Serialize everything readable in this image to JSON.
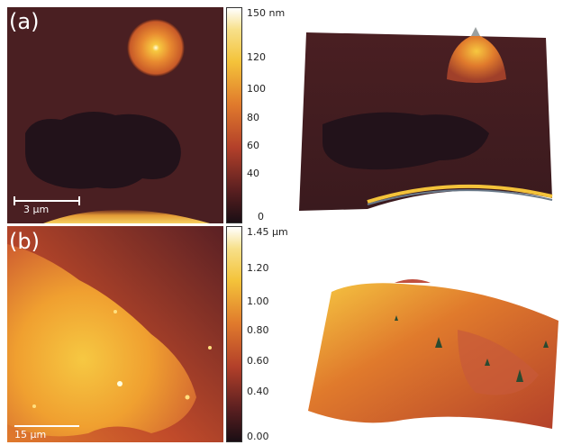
{
  "panels": [
    {
      "label": "(a)",
      "scalebar": "3 μm",
      "colorbar_ticks": [
        "150 nm",
        "120",
        "100",
        "80",
        "60",
        "40",
        "0"
      ]
    },
    {
      "label": "(b)",
      "scalebar": "15 μm",
      "colorbar_ticks": [
        "1.45 μm",
        "1.20",
        "1.00",
        "0.80",
        "0.60",
        "0.40",
        "0.00"
      ]
    }
  ],
  "colors": {
    "dark": "#1a0e14",
    "mid": "#5a1f20",
    "red": "#b3402a",
    "orange": "#e07a2c",
    "yellow": "#f4c33a",
    "white": "#ffffff"
  }
}
